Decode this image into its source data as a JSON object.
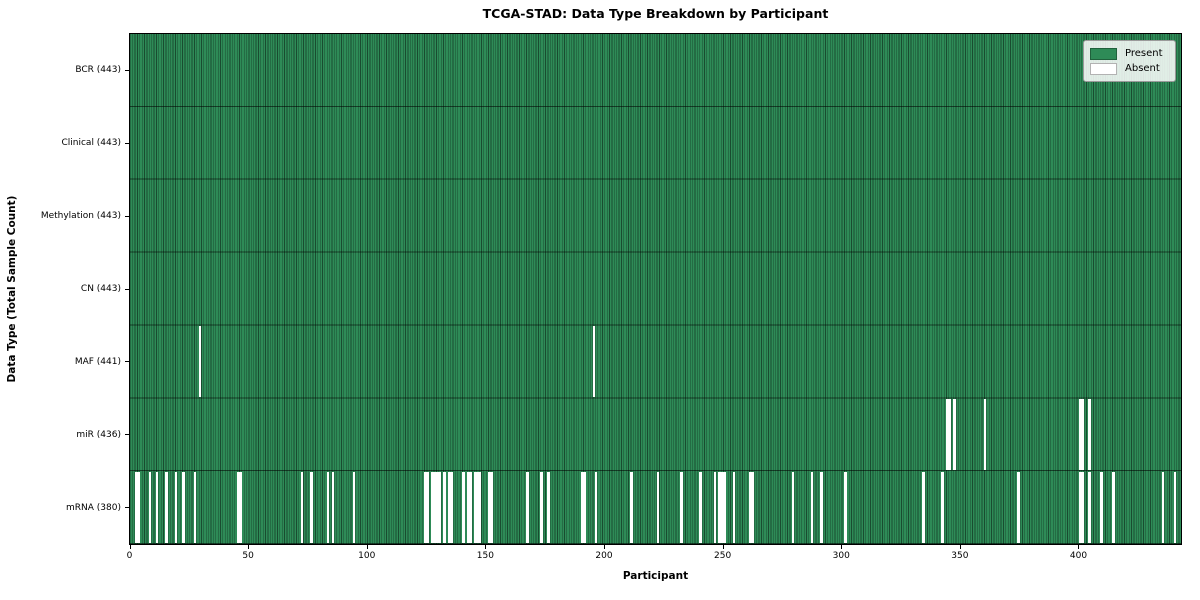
{
  "chart_data": {
    "type": "heatmap",
    "title": "TCGA-STAD: Data Type Breakdown by Participant",
    "xlabel": "Participant",
    "ylabel": "Data Type (Total Sample Count)",
    "n_participants": 443,
    "x_ticks": [
      0,
      50,
      100,
      150,
      200,
      250,
      300,
      350,
      400
    ],
    "grid": false,
    "legend_position": "upper right",
    "legend": [
      {
        "label": "Present",
        "color": "#2e8b57"
      },
      {
        "label": "Absent",
        "color": "#ffffff"
      }
    ],
    "colors": {
      "present": "#2e8b57",
      "absent": "#ffffff",
      "cell_edge": "rgba(0,0,0,0.45)"
    },
    "rows": [
      {
        "label": "BCR (443)",
        "data_type": "BCR",
        "present_count": 443,
        "absent_participants": []
      },
      {
        "label": "Clinical (443)",
        "data_type": "Clinical",
        "present_count": 443,
        "absent_participants": []
      },
      {
        "label": "Methylation (443)",
        "data_type": "Methylation",
        "present_count": 443,
        "absent_participants": []
      },
      {
        "label": "CN (443)",
        "data_type": "CN",
        "present_count": 443,
        "absent_participants": []
      },
      {
        "label": "MAF (441)",
        "data_type": "MAF",
        "present_count": 441,
        "absent_participants": [
          29,
          195
        ]
      },
      {
        "label": "miR (436)",
        "data_type": "miR",
        "present_count": 436,
        "absent_participants": [
          344,
          345,
          347,
          360,
          400,
          401,
          404
        ]
      },
      {
        "label": "mRNA (380)",
        "data_type": "mRNA",
        "present_count": 380,
        "absent_participants": [
          2,
          3,
          8,
          11,
          15,
          19,
          22,
          27,
          45,
          46,
          72,
          76,
          83,
          85,
          94,
          124,
          125,
          127,
          128,
          129,
          130,
          132,
          134,
          135,
          140,
          142,
          143,
          145,
          146,
          147,
          151,
          152,
          167,
          173,
          176,
          190,
          191,
          196,
          211,
          222,
          232,
          240,
          246,
          248,
          249,
          250,
          254,
          261,
          262,
          279,
          287,
          291,
          301,
          334,
          342,
          374,
          400,
          401,
          404,
          409,
          414,
          435,
          440
        ]
      }
    ]
  }
}
